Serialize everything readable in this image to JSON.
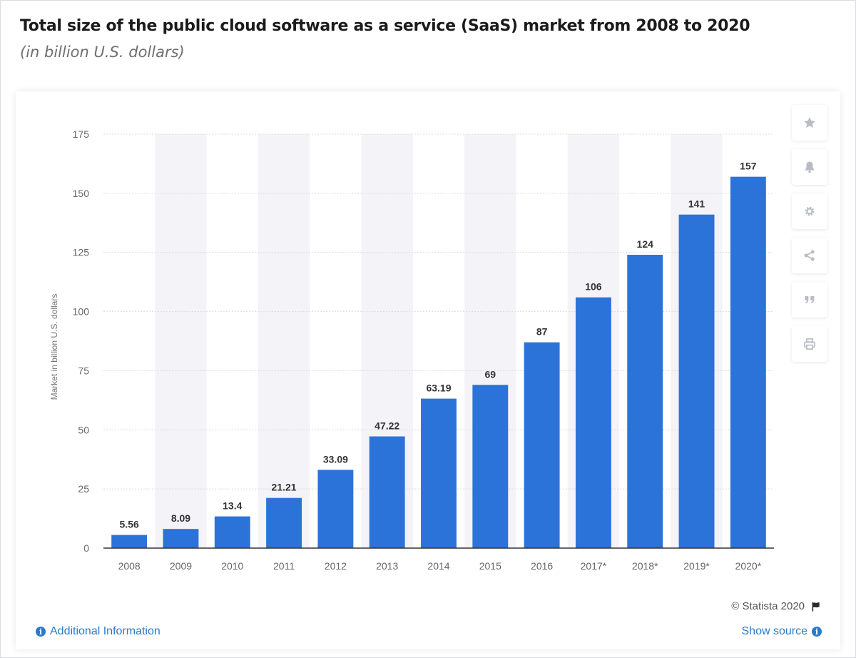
{
  "header": {
    "title": "Total size of the public cloud software as a service (SaaS) market from 2008 to 2020",
    "subtitle": "(in billion U.S. dollars)"
  },
  "toolbar": {
    "icons": [
      "star-icon",
      "bell-icon",
      "gear-icon",
      "share-icon",
      "quote-icon",
      "print-icon"
    ]
  },
  "footer": {
    "copyright": "© Statista 2020",
    "additional_info": "Additional Information",
    "show_source": "Show source"
  },
  "colors": {
    "bar": "#2b73d9",
    "band": "#f4f3f7",
    "accent": "#2a7ac8",
    "grid": "#dcdcdc"
  },
  "chart_data": {
    "type": "bar",
    "title": "Total size of the public cloud software as a service (SaaS) market from 2008 to 2020",
    "subtitle": "(in billion U.S. dollars)",
    "xlabel": "",
    "ylabel": "Market in billion U.S. dollars",
    "categories": [
      "2008",
      "2009",
      "2010",
      "2011",
      "2012",
      "2013",
      "2014",
      "2015",
      "2016",
      "2017*",
      "2018*",
      "2019*",
      "2020*"
    ],
    "values": [
      5.56,
      8.09,
      13.4,
      21.21,
      33.09,
      47.22,
      63.19,
      69,
      87,
      106,
      124,
      141,
      157
    ],
    "value_labels": [
      "5.56",
      "8.09",
      "13.4",
      "21.21",
      "33.09",
      "47.22",
      "63.19",
      "69",
      "87",
      "106",
      "124",
      "141",
      "157"
    ],
    "ylim": [
      0,
      175
    ],
    "yticks": [
      0,
      25,
      50,
      75,
      100,
      125,
      150,
      175
    ],
    "grid": true,
    "legend": "none"
  }
}
